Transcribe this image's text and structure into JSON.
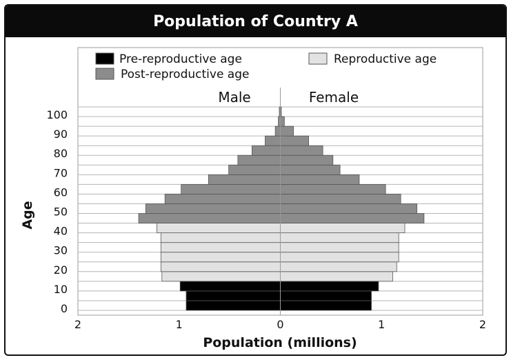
{
  "chart_data": {
    "type": "bar",
    "subtype": "population-pyramid",
    "title": "Population of Country A",
    "xlabel": "Population (millions)",
    "ylabel": "Age",
    "xlim": [
      -2,
      2
    ],
    "x_ticks": [
      -2,
      -1,
      0,
      1,
      2
    ],
    "x_tick_labels": [
      "2",
      "1",
      "0",
      "1",
      "2"
    ],
    "y_ticks": [
      0,
      10,
      20,
      30,
      40,
      50,
      60,
      70,
      80,
      90,
      100
    ],
    "y_tick_labels": [
      "0",
      "10",
      "20",
      "30",
      "40",
      "50",
      "60",
      "70",
      "80",
      "90",
      "100"
    ],
    "side_labels": {
      "left": "Male",
      "right": "Female"
    },
    "legend": {
      "placement": "top",
      "entries": [
        {
          "key": "pre",
          "label": "Pre-reproductive age",
          "color": "#000000"
        },
        {
          "key": "repro",
          "label": "Reproductive age",
          "color": "#e2e2e2"
        },
        {
          "key": "post",
          "label": "Post-reproductive age",
          "color": "#8c8c8c"
        }
      ]
    },
    "age_groups": [
      "0-4",
      "5-9",
      "10-14",
      "15-19",
      "20-24",
      "25-29",
      "30-34",
      "35-39",
      "40-44",
      "45-49",
      "50-54",
      "55-59",
      "60-64",
      "65-69",
      "70-74",
      "75-79",
      "80-84",
      "85-89",
      "90-94",
      "95-99",
      "100+"
    ],
    "categories_by_group": [
      "pre",
      "pre",
      "pre",
      "repro",
      "repro",
      "repro",
      "repro",
      "repro",
      "repro",
      "post",
      "post",
      "post",
      "post",
      "post",
      "post",
      "post",
      "post",
      "post",
      "post",
      "post",
      "post"
    ],
    "series": [
      {
        "name": "Male",
        "values": [
          0.93,
          0.93,
          0.99,
          1.17,
          1.18,
          1.18,
          1.18,
          1.18,
          1.22,
          1.4,
          1.33,
          1.14,
          0.98,
          0.71,
          0.51,
          0.42,
          0.28,
          0.15,
          0.05,
          0.02,
          0.01
        ]
      },
      {
        "name": "Female",
        "values": [
          0.9,
          0.9,
          0.97,
          1.11,
          1.15,
          1.17,
          1.17,
          1.17,
          1.23,
          1.42,
          1.35,
          1.19,
          1.04,
          0.78,
          0.59,
          0.52,
          0.42,
          0.28,
          0.13,
          0.04,
          0.01
        ]
      }
    ],
    "grid": "horizontal"
  }
}
